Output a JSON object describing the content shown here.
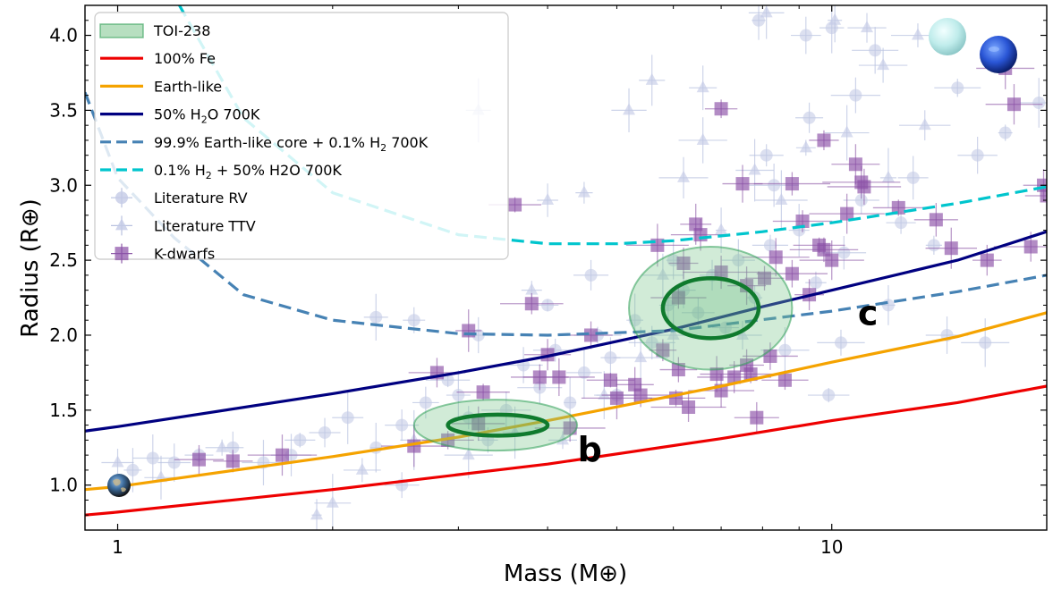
{
  "chart_data": {
    "type": "scatter",
    "xlabel": "Mass (M⊕)",
    "ylabel": "Radius (R⊕)",
    "xscale": "log",
    "xlim": [
      0.9,
      20
    ],
    "ylim": [
      0.7,
      4.2
    ],
    "x_ticks": [
      {
        "value": 1,
        "label": "1"
      },
      {
        "value": 10,
        "label": "10"
      }
    ],
    "y_ticks": [
      {
        "value": 1.0,
        "label": "1.0"
      },
      {
        "value": 1.5,
        "label": "1.5"
      },
      {
        "value": 2.0,
        "label": "2.0"
      },
      {
        "value": 2.5,
        "label": "2.5"
      },
      {
        "value": 3.0,
        "label": "3.0"
      },
      {
        "value": 3.5,
        "label": "3.5"
      },
      {
        "value": 4.0,
        "label": "4.0"
      }
    ],
    "legend_position": "top-left",
    "legend": [
      {
        "label": "TOI-238",
        "kind": "patch",
        "color": "#2e8b57"
      },
      {
        "label": "100% Fe",
        "kind": "line",
        "color": "#ee0000"
      },
      {
        "label": "Earth-like",
        "kind": "line",
        "color": "#f5a300"
      },
      {
        "label": "50% H",
        "sub": "2",
        "label_tail": "O 700K",
        "kind": "line",
        "color": "#000080"
      },
      {
        "label": "99.9% Earth-like core + 0.1% H",
        "sub": "2",
        "label_tail": " 700K",
        "kind": "dashed",
        "color": "#4682b4"
      },
      {
        "label": "0.1% H",
        "sub": "2",
        "label_tail": " + 50% H2O 700K",
        "kind": "dashed",
        "color": "#00c5cd"
      },
      {
        "label": "Literature RV",
        "kind": "circle",
        "color": "#8899cc"
      },
      {
        "label": "Literature TTV",
        "kind": "triangle",
        "color": "#8899cc"
      },
      {
        "label": "K-dwarfs",
        "kind": "square",
        "color": "#7b3f99"
      }
    ],
    "models": [
      {
        "name": "100% Fe",
        "style": "solid",
        "color": "#ee0000",
        "x": [
          0.9,
          1,
          2,
          4,
          7,
          10,
          15,
          20
        ],
        "y": [
          0.8,
          0.82,
          0.97,
          1.14,
          1.31,
          1.43,
          1.55,
          1.66
        ]
      },
      {
        "name": "Earth-like",
        "style": "solid",
        "color": "#f5a300",
        "x": [
          0.9,
          1,
          2,
          3,
          4,
          7,
          10,
          15,
          20
        ],
        "y": [
          0.97,
          0.99,
          1.19,
          1.32,
          1.43,
          1.66,
          1.82,
          1.99,
          2.15
        ]
      },
      {
        "name": "50% H2O 700K",
        "style": "solid",
        "color": "#000080",
        "x": [
          0.9,
          1,
          2,
          3,
          4,
          6,
          8,
          10,
          15,
          20
        ],
        "y": [
          1.36,
          1.39,
          1.61,
          1.75,
          1.86,
          2.04,
          2.19,
          2.3,
          2.5,
          2.69
        ]
      },
      {
        "name": "99.9% Earth-like core + 0.1% H2 700K",
        "style": "dashed",
        "color": "#4682b4",
        "x": [
          0.9,
          1,
          1.2,
          1.5,
          2,
          3,
          4,
          6,
          10,
          15,
          20
        ],
        "y": [
          3.62,
          3.05,
          2.65,
          2.27,
          2.1,
          2.01,
          2.0,
          2.03,
          2.16,
          2.29,
          2.4
        ]
      },
      {
        "name": "0.1% H2 + 50% H2O 700K",
        "style": "dashed",
        "color": "#00c5cd",
        "x": [
          1.22,
          1.5,
          2,
          3,
          4,
          5,
          6,
          8,
          10,
          15,
          20
        ],
        "y": [
          4.2,
          3.45,
          2.95,
          2.67,
          2.61,
          2.61,
          2.63,
          2.69,
          2.75,
          2.88,
          2.99
        ]
      }
    ],
    "planets": [
      {
        "name": "b",
        "mass": 3.4,
        "radius": 1.4,
        "outer": {
          "x_range": [
            2.6,
            4.4
          ],
          "y_range": [
            1.23,
            1.57
          ]
        },
        "inner": {
          "x_range": [
            2.9,
            4.0
          ],
          "y_range": [
            1.33,
            1.47
          ]
        }
      },
      {
        "name": "c",
        "mass": 6.7,
        "radius": 2.18,
        "outer": {
          "x_range": [
            5.2,
            8.8
          ],
          "y_range": [
            1.77,
            2.59
          ]
        },
        "inner": {
          "x_range": [
            5.8,
            7.9
          ],
          "y_range": [
            1.98,
            2.38
          ]
        }
      }
    ],
    "literature_rv": [
      [
        1.05,
        1.1
      ],
      [
        1.12,
        1.18
      ],
      [
        1.2,
        1.15
      ],
      [
        1.3,
        1.2
      ],
      [
        1.45,
        1.25
      ],
      [
        1.6,
        1.15
      ],
      [
        1.75,
        1.2
      ],
      [
        1.8,
        1.3
      ],
      [
        1.95,
        1.35
      ],
      [
        2.1,
        1.45
      ],
      [
        2.3,
        1.25
      ],
      [
        2.5,
        1.4
      ],
      [
        2.5,
        1.0
      ],
      [
        2.7,
        1.55
      ],
      [
        2.9,
        1.7
      ],
      [
        3.0,
        1.6
      ],
      [
        3.1,
        1.45
      ],
      [
        3.3,
        1.3
      ],
      [
        3.5,
        1.5
      ],
      [
        3.7,
        1.8
      ],
      [
        3.9,
        1.65
      ],
      [
        4.1,
        1.9
      ],
      [
        4.3,
        1.55
      ],
      [
        4.5,
        1.75
      ],
      [
        4.7,
        2.0
      ],
      [
        4.9,
        1.85
      ],
      [
        5.0,
        1.6
      ],
      [
        5.3,
        2.1
      ],
      [
        5.6,
        1.95
      ],
      [
        5.9,
        2.2
      ],
      [
        6.2,
        2.3
      ],
      [
        6.5,
        2.15
      ],
      [
        6.8,
        2.4
      ],
      [
        7.1,
        2.05
      ],
      [
        7.4,
        2.5
      ],
      [
        7.8,
        2.25
      ],
      [
        8.2,
        2.6
      ],
      [
        8.6,
        1.9
      ],
      [
        9.0,
        2.7
      ],
      [
        9.5,
        2.35
      ],
      [
        9.9,
        1.6
      ],
      [
        10.4,
        2.55
      ],
      [
        11.0,
        2.9
      ],
      [
        12.0,
        2.2
      ],
      [
        13.0,
        3.05
      ],
      [
        14.5,
        2.0
      ],
      [
        16.0,
        3.2
      ],
      [
        17.5,
        3.35
      ],
      [
        9.3,
        3.45
      ],
      [
        10.8,
        3.6
      ],
      [
        15.0,
        3.65
      ],
      [
        12.5,
        2.75
      ],
      [
        10.0,
        4.05
      ],
      [
        9.2,
        4.0
      ],
      [
        7.9,
        4.1
      ],
      [
        11.5,
        3.9
      ],
      [
        2.6,
        2.1
      ],
      [
        2.3,
        2.12
      ],
      [
        4.6,
        2.4
      ],
      [
        8.1,
        3.2
      ],
      [
        3.2,
        2.0
      ],
      [
        4.0,
        2.2
      ],
      [
        10.3,
        1.95
      ],
      [
        16.4,
        1.95
      ],
      [
        13.9,
        2.6
      ],
      [
        19.5,
        3.55
      ],
      [
        6.0,
        2.5
      ],
      [
        8.3,
        3.0
      ]
    ],
    "literature_ttv": [
      [
        1.0,
        1.15
      ],
      [
        1.15,
        1.05
      ],
      [
        1.4,
        1.25
      ],
      [
        1.9,
        0.8
      ],
      [
        2.0,
        0.88
      ],
      [
        2.2,
        1.1
      ],
      [
        2.6,
        1.3
      ],
      [
        3.1,
        1.2
      ],
      [
        3.6,
        1.35
      ],
      [
        4.2,
        1.3
      ],
      [
        4.8,
        1.6
      ],
      [
        5.4,
        1.85
      ],
      [
        5.8,
        2.4
      ],
      [
        6.2,
        3.05
      ],
      [
        6.6,
        3.3
      ],
      [
        7.0,
        2.7
      ],
      [
        7.8,
        3.1
      ],
      [
        8.5,
        2.9
      ],
      [
        9.2,
        3.25
      ],
      [
        10.5,
        3.35
      ],
      [
        12.0,
        3.05
      ],
      [
        13.5,
        3.4
      ],
      [
        4.5,
        2.95
      ],
      [
        3.2,
        3.5
      ],
      [
        5.2,
        3.5
      ],
      [
        5.6,
        3.7
      ],
      [
        6.6,
        3.65
      ],
      [
        8.1,
        4.15
      ],
      [
        10.1,
        4.1
      ],
      [
        11.2,
        4.05
      ],
      [
        13.2,
        4.0
      ],
      [
        3.8,
        2.3
      ],
      [
        4.0,
        2.9
      ],
      [
        6.0,
        2.0
      ],
      [
        11.8,
        3.8
      ],
      [
        7.5,
        2.0
      ]
    ],
    "k_dwarfs": [
      [
        1.3,
        1.17
      ],
      [
        1.45,
        1.16
      ],
      [
        1.7,
        1.2
      ],
      [
        2.6,
        1.26
      ],
      [
        2.9,
        1.3
      ],
      [
        3.2,
        1.41
      ],
      [
        3.25,
        1.62
      ],
      [
        3.1,
        2.03
      ],
      [
        2.8,
        1.75
      ],
      [
        3.9,
        1.72
      ],
      [
        4.0,
        1.87
      ],
      [
        4.3,
        1.38
      ],
      [
        4.6,
        2.0
      ],
      [
        4.9,
        1.7
      ],
      [
        5.3,
        1.67
      ],
      [
        5.4,
        1.6
      ],
      [
        3.8,
        2.21
      ],
      [
        4.15,
        1.72
      ],
      [
        5.0,
        1.58
      ],
      [
        5.8,
        1.9
      ],
      [
        6.05,
        1.58
      ],
      [
        6.3,
        1.52
      ],
      [
        6.1,
        1.77
      ],
      [
        7.0,
        1.63
      ],
      [
        6.9,
        1.74
      ],
      [
        7.3,
        1.72
      ],
      [
        7.6,
        1.8
      ],
      [
        7.7,
        1.74
      ],
      [
        8.2,
        1.86
      ],
      [
        7.85,
        1.45
      ],
      [
        8.6,
        1.7
      ],
      [
        6.1,
        2.25
      ],
      [
        6.45,
        2.74
      ],
      [
        6.55,
        2.67
      ],
      [
        7.0,
        2.42
      ],
      [
        7.6,
        2.33
      ],
      [
        8.05,
        2.38
      ],
      [
        8.35,
        2.52
      ],
      [
        8.8,
        2.41
      ],
      [
        9.1,
        2.76
      ],
      [
        9.3,
        2.27
      ],
      [
        9.6,
        2.6
      ],
      [
        9.75,
        2.57
      ],
      [
        10.0,
        2.5
      ],
      [
        9.75,
        3.3
      ],
      [
        10.8,
        3.14
      ],
      [
        11.0,
        3.02
      ],
      [
        11.1,
        2.99
      ],
      [
        12.4,
        2.85
      ],
      [
        14.0,
        2.77
      ],
      [
        14.7,
        2.58
      ],
      [
        16.5,
        2.5
      ],
      [
        19.0,
        2.59
      ],
      [
        19.8,
        3.0
      ],
      [
        20.0,
        2.93
      ],
      [
        17.5,
        3.78
      ],
      [
        18.0,
        3.54
      ],
      [
        3.6,
        2.87
      ],
      [
        7.5,
        3.01
      ],
      [
        10.5,
        2.81
      ],
      [
        8.8,
        3.01
      ],
      [
        7.0,
        3.51
      ],
      [
        5.7,
        2.6
      ],
      [
        6.2,
        2.48
      ]
    ]
  }
}
